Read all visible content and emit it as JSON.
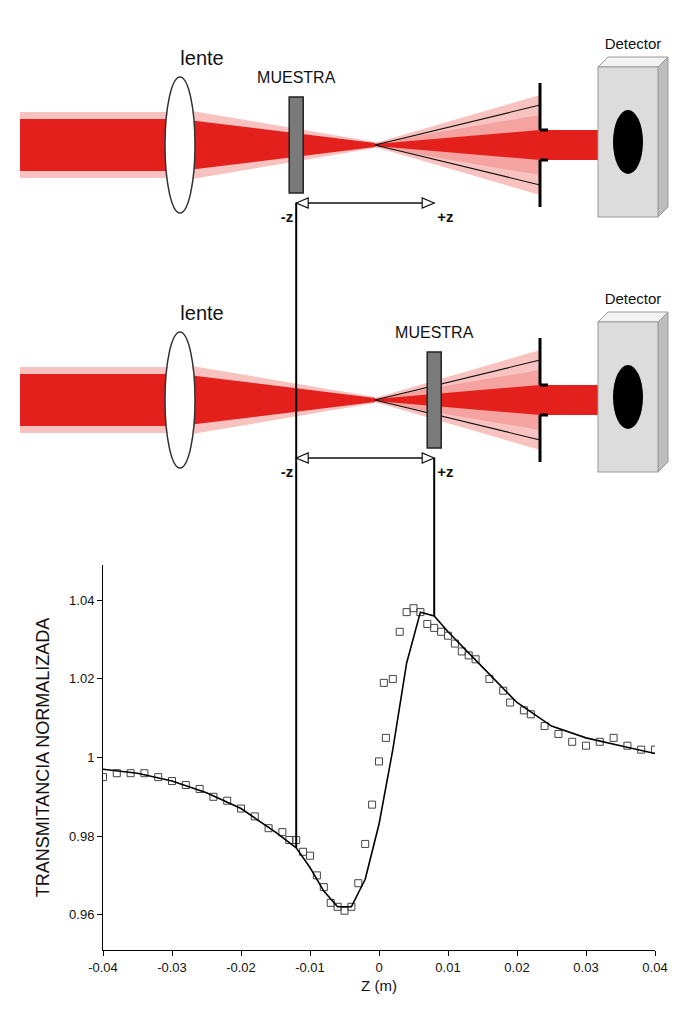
{
  "diagram": {
    "rows": [
      {
        "lens": "lente",
        "sample": "MUESTRA",
        "detector": "Detector",
        "sample_z": -0.012
      },
      {
        "lens": "lente",
        "sample": "MUESTRA",
        "detector": "Detector",
        "sample_z": 0.008
      }
    ],
    "arrow_labels": [
      "-z",
      "+z"
    ]
  },
  "chart_data": {
    "type": "scatter",
    "xlabel": "Z (m)",
    "ylabel": "TRANSMITANCIA NORMALIZADA",
    "xlim": [
      -0.04,
      0.04
    ],
    "xticks": [
      -0.04,
      -0.03,
      -0.02,
      -0.01,
      0,
      0.01,
      0.02,
      0.03,
      0.04
    ],
    "ylim": [
      0.951,
      1.049
    ],
    "yticks": [
      0.96,
      0.98,
      1,
      1.02,
      1.04
    ],
    "grid": false,
    "series": [
      {
        "type": "scatter",
        "marker": "square-open",
        "color": "#444444",
        "x": [
          -0.04,
          -0.038,
          -0.036,
          -0.034,
          -0.032,
          -0.03,
          -0.028,
          -0.026,
          -0.024,
          -0.022,
          -0.02,
          -0.018,
          -0.016,
          -0.014,
          -0.013,
          -0.012,
          -0.011,
          -0.01,
          -0.009,
          -0.008,
          -0.007,
          -0.006,
          -0.005,
          -0.004,
          -0.003,
          -0.002,
          -0.001,
          0,
          0.0007,
          0.001,
          0.002,
          0.003,
          0.004,
          0.005,
          0.006,
          0.007,
          0.008,
          0.009,
          0.01,
          0.011,
          0.012,
          0.013,
          0.014,
          0.016,
          0.018,
          0.019,
          0.021,
          0.022,
          0.024,
          0.026,
          0.028,
          0.03,
          0.032,
          0.034,
          0.036,
          0.038,
          0.04
        ],
        "values": [
          0.995,
          0.996,
          0.996,
          0.996,
          0.995,
          0.994,
          0.993,
          0.992,
          0.99,
          0.989,
          0.987,
          0.985,
          0.982,
          0.981,
          0.979,
          0.979,
          0.976,
          0.975,
          0.97,
          0.967,
          0.963,
          0.962,
          0.961,
          0.962,
          0.968,
          0.978,
          0.988,
          0.999,
          1.019,
          1.005,
          1.02,
          1.032,
          1.037,
          1.038,
          1.037,
          1.034,
          1.033,
          1.032,
          1.031,
          1.029,
          1.027,
          1.026,
          1.025,
          1.02,
          1.017,
          1.014,
          1.012,
          1.011,
          1.008,
          1.006,
          1.004,
          1.003,
          1.004,
          1.005,
          1.003,
          1.002,
          1.002
        ]
      },
      {
        "type": "line",
        "line_style": "solid",
        "color": "#000000",
        "x": [
          -0.04,
          -0.035,
          -0.03,
          -0.025,
          -0.02,
          -0.015,
          -0.012,
          -0.01,
          -0.008,
          -0.006,
          -0.004,
          -0.002,
          0,
          0.002,
          0.004,
          0.006,
          0.008,
          0.01,
          0.015,
          0.02,
          0.025,
          0.03,
          0.035,
          0.04
        ],
        "values": [
          0.997,
          0.996,
          0.994,
          0.991,
          0.987,
          0.981,
          0.977,
          0.972,
          0.966,
          0.962,
          0.962,
          0.969,
          0.983,
          1.002,
          1.024,
          1.037,
          1.036,
          1.032,
          1.023,
          1.014,
          1.008,
          1.005,
          1.003,
          1.001
        ]
      }
    ]
  }
}
